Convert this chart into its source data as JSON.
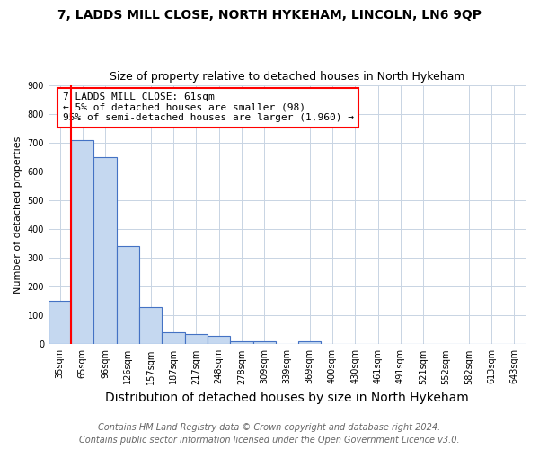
{
  "title": "7, LADDS MILL CLOSE, NORTH HYKEHAM, LINCOLN, LN6 9QP",
  "subtitle": "Size of property relative to detached houses in North Hykeham",
  "xlabel": "Distribution of detached houses by size in North Hykeham",
  "ylabel": "Number of detached properties",
  "footer_line1": "Contains HM Land Registry data © Crown copyright and database right 2024.",
  "footer_line2": "Contains public sector information licensed under the Open Government Licence v3.0.",
  "categories": [
    "35sqm",
    "65sqm",
    "96sqm",
    "126sqm",
    "157sqm",
    "187sqm",
    "217sqm",
    "248sqm",
    "278sqm",
    "309sqm",
    "339sqm",
    "369sqm",
    "400sqm",
    "430sqm",
    "461sqm",
    "491sqm",
    "521sqm",
    "552sqm",
    "582sqm",
    "613sqm",
    "643sqm"
  ],
  "values": [
    150,
    710,
    650,
    340,
    130,
    40,
    35,
    30,
    10,
    10,
    0,
    10,
    0,
    0,
    0,
    0,
    0,
    0,
    0,
    0,
    0
  ],
  "bar_color": "#c5d8f0",
  "bar_edge_color": "#4472c4",
  "bar_edge_width": 0.8,
  "annotation_text": "7 LADDS MILL CLOSE: 61sqm\n← 5% of detached houses are smaller (98)\n95% of semi-detached houses are larger (1,960) →",
  "annotation_box_color": "white",
  "annotation_box_edge_color": "red",
  "ylim": [
    0,
    900
  ],
  "yticks": [
    0,
    100,
    200,
    300,
    400,
    500,
    600,
    700,
    800,
    900
  ],
  "background_color": "white",
  "grid_color": "#c8d4e3",
  "title_fontsize": 10,
  "subtitle_fontsize": 9,
  "xlabel_fontsize": 10,
  "ylabel_fontsize": 8,
  "tick_fontsize": 7,
  "annotation_fontsize": 8,
  "footer_fontsize": 7
}
